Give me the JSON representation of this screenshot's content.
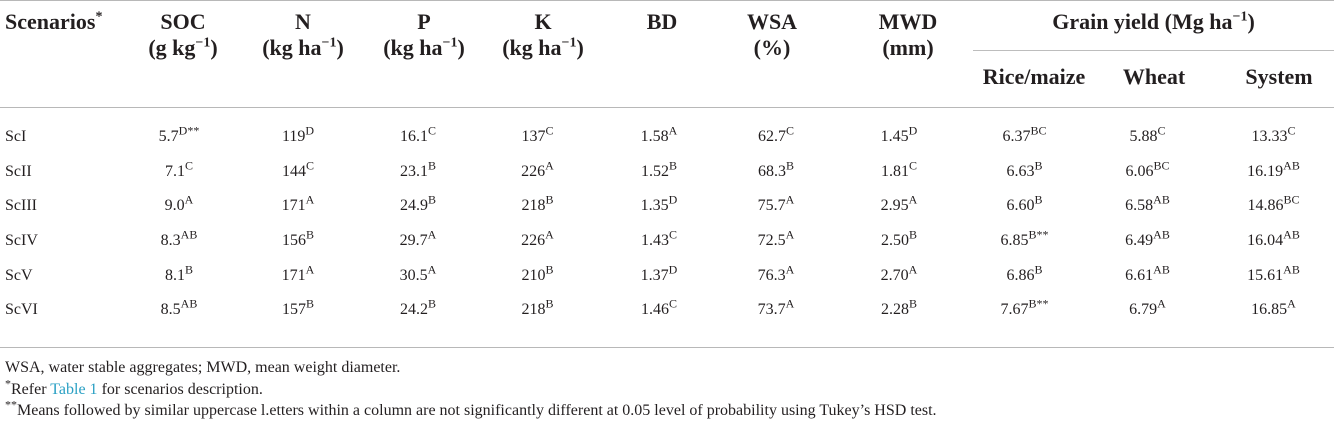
{
  "table": {
    "headers": {
      "scenarios": "Scenarios",
      "scenarios_mark": "*",
      "soc": "SOC",
      "soc_unit_pre": "(g kg",
      "soc_unit_exp": "−1",
      "soc_unit_post": ")",
      "n": "N",
      "n_unit_pre": "(kg ha",
      "n_unit_exp": "−1",
      "n_unit_post": ")",
      "p": "P",
      "p_unit_pre": "(kg ha",
      "p_unit_exp": "−1",
      "p_unit_post": ")",
      "k": "K",
      "k_unit_pre": "(kg ha",
      "k_unit_exp": "−1",
      "k_unit_post": ")",
      "bd": "BD",
      "wsa": "WSA",
      "wsa_unit": "(%)",
      "mwd": "MWD",
      "mwd_unit": "(mm)",
      "grain_pre": "Grain yield (Mg ha",
      "grain_exp": "−1",
      "grain_post": ")",
      "rice_maize": "Rice/maize",
      "wheat": "Wheat",
      "system": "System"
    },
    "rows": [
      {
        "scenario": "ScI",
        "cells": [
          [
            "5.7",
            "D**"
          ],
          [
            "119",
            "D"
          ],
          [
            "16.1",
            "C"
          ],
          [
            "137",
            "C"
          ],
          [
            "1.58",
            "A"
          ],
          [
            "62.7",
            "C"
          ],
          [
            "1.45",
            "D"
          ],
          [
            "6.37",
            "BC"
          ],
          [
            "5.88",
            "C"
          ],
          [
            "13.33",
            "C"
          ]
        ]
      },
      {
        "scenario": "ScII",
        "cells": [
          [
            "7.1",
            "C"
          ],
          [
            "144",
            "C"
          ],
          [
            "23.1",
            "B"
          ],
          [
            "226",
            "A"
          ],
          [
            "1.52",
            "B"
          ],
          [
            "68.3",
            "B"
          ],
          [
            "1.81",
            "C"
          ],
          [
            "6.63",
            "B"
          ],
          [
            "6.06",
            "BC"
          ],
          [
            "16.19",
            "AB"
          ]
        ]
      },
      {
        "scenario": "ScIII",
        "cells": [
          [
            "9.0",
            "A"
          ],
          [
            "171",
            "A"
          ],
          [
            "24.9",
            "B"
          ],
          [
            "218",
            "B"
          ],
          [
            "1.35",
            "D"
          ],
          [
            "75.7",
            "A"
          ],
          [
            "2.95",
            "A"
          ],
          [
            "6.60",
            "B"
          ],
          [
            "6.58",
            "AB"
          ],
          [
            "14.86",
            "BC"
          ]
        ]
      },
      {
        "scenario": "ScIV",
        "cells": [
          [
            "8.3",
            "AB"
          ],
          [
            "156",
            "B"
          ],
          [
            "29.7",
            "A"
          ],
          [
            "226",
            "A"
          ],
          [
            "1.43",
            "C"
          ],
          [
            "72.5",
            "A"
          ],
          [
            "2.50",
            "B"
          ],
          [
            "6.85",
            "B**"
          ],
          [
            "6.49",
            "AB"
          ],
          [
            "16.04",
            "AB"
          ]
        ]
      },
      {
        "scenario": "ScV",
        "cells": [
          [
            "8.1",
            "B"
          ],
          [
            "171",
            "A"
          ],
          [
            "30.5",
            "A"
          ],
          [
            "210",
            "B"
          ],
          [
            "1.37",
            "D"
          ],
          [
            "76.3",
            "A"
          ],
          [
            "2.70",
            "A"
          ],
          [
            "6.86",
            "B"
          ],
          [
            "6.61",
            "AB"
          ],
          [
            "15.61",
            "AB"
          ]
        ]
      },
      {
        "scenario": "ScVI",
        "cells": [
          [
            "8.5",
            "AB"
          ],
          [
            "157",
            "B"
          ],
          [
            "24.2",
            "B"
          ],
          [
            "218",
            "B"
          ],
          [
            "1.46",
            "C"
          ],
          [
            "73.7",
            "A"
          ],
          [
            "2.28",
            "B"
          ],
          [
            "7.67",
            "B**"
          ],
          [
            "6.79",
            "A"
          ],
          [
            "16.85",
            "A"
          ]
        ]
      }
    ]
  },
  "footnotes": {
    "abbrev": "WSA, water stable aggregates; MWD, mean weight diameter.",
    "note1_mark": "*",
    "note1_pre": "Refer ",
    "note1_link": "Table 1",
    "note1_post": " for scenarios description.",
    "note2_mark": "**",
    "note2_text": "Means followed by similar uppercase l.etters within a column are not significantly different at 0.05 level of probability using Tukey’s HSD test."
  },
  "colors": {
    "link": "#2aa0c4",
    "rule": "#b8b8b8",
    "text": "#231f20"
  }
}
